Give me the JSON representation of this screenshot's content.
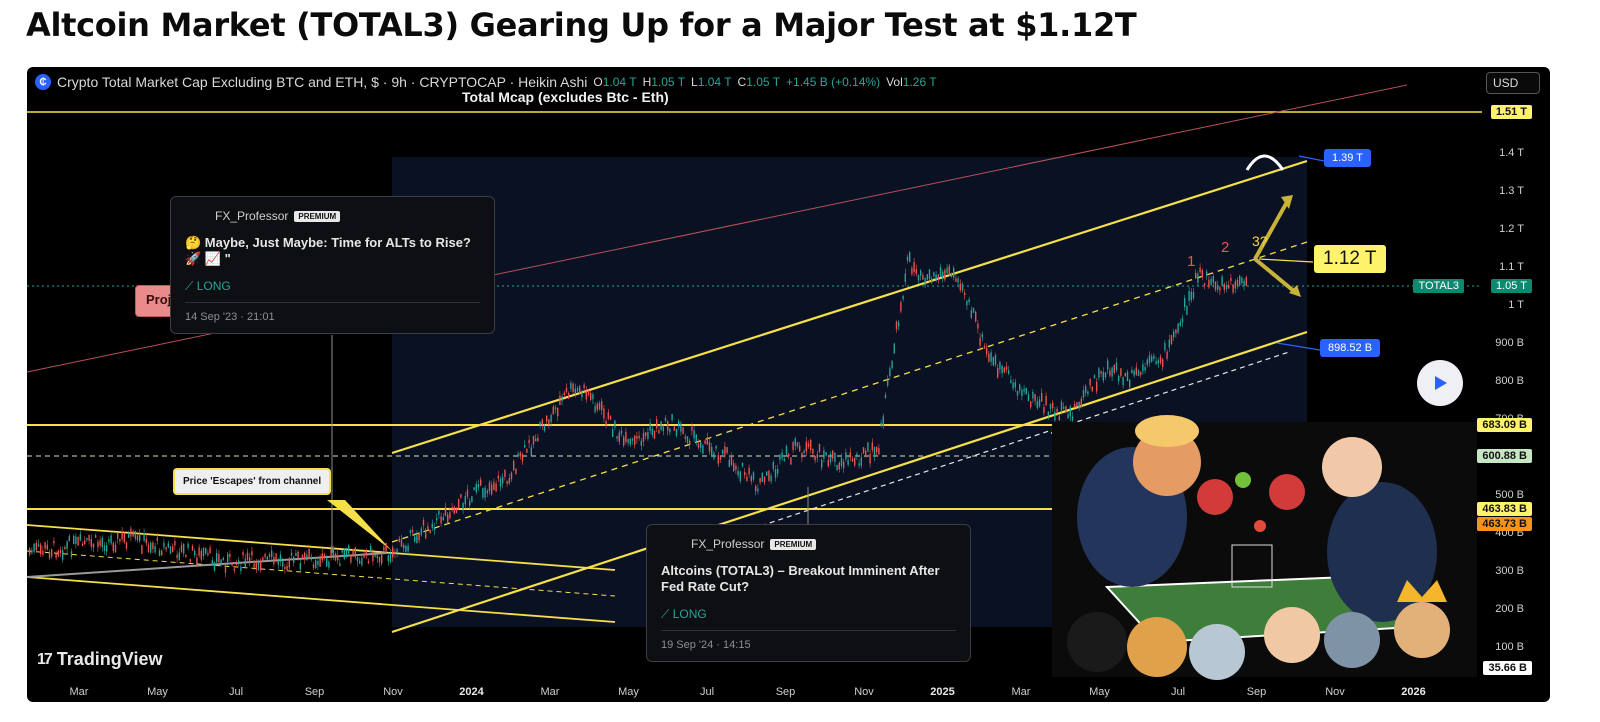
{
  "page": {
    "title": "Altcoin Market (TOTAL3) Gearing Up for a Major Test at $1.12T"
  },
  "legend": {
    "symbol": "Crypto Total Market Cap Excluding BTC and ETH, $ · 9h · CRYPTOCAP · Heikin Ashi",
    "o_label": "O",
    "o_value": "1.04 T",
    "h_label": "H",
    "h_value": "1.05 T",
    "l_label": "L",
    "l_value": "1.04 T",
    "c_label": "C",
    "c_value": "1.05 T",
    "change": "+1.45 B (+0.14%)",
    "vol_label": "Vol",
    "vol_value": "1.26 T"
  },
  "currency_button": "USD",
  "overlay_title": "Total Mcap (excludes Btc - Eth)",
  "price_axis": [
    "1.4 T",
    "1.3 T",
    "1.2 T",
    "1.1 T",
    "1 T",
    "900 B",
    "800 B",
    "700 B",
    "500 B",
    "400 B",
    "300 B",
    "200 B",
    "100 B"
  ],
  "price_tags": {
    "top": "1.51 T",
    "current_symbol": "TOTAL3",
    "current_value": "1.05 T",
    "level_683": "683.09 B",
    "level_600": "600.88 B",
    "level_463a": "463.83 B",
    "level_463b": "463.73 B",
    "bottom": "35.66 B"
  },
  "colors": {
    "tag_yellow": "#fff36b",
    "tag_green": "#c7e6c3",
    "tag_orange": "#f7931a",
    "tag_teal": "#0b8a6f"
  },
  "time_axis": [
    "Mar",
    "May",
    "Jul",
    "Sep",
    "Nov",
    "2024",
    "Mar",
    "May",
    "Jul",
    "Sep",
    "Nov",
    "2025",
    "Mar",
    "May",
    "Jul",
    "Sep",
    "Nov",
    "2026"
  ],
  "annotations": {
    "target": "1.12 T",
    "upper_target": "1.39 T",
    "lower_support": "898.52 B",
    "wave_1": "1",
    "wave_2": "2",
    "wave_3": "3?",
    "escape_callout": "Price 'Escapes' from channel",
    "pink_label": "Proj"
  },
  "idea_cards": [
    {
      "author": "FX_Professor",
      "badge": "PREMIUM",
      "title": "🤔 Maybe, Just Maybe: Time for ALTs to Rise? 🚀 📈 \"",
      "side": "LONG",
      "date": "14 Sep '23 · 21:01"
    },
    {
      "author": "FX_Professor",
      "badge": "PREMIUM",
      "title": "Altcoins (TOTAL3) – Breakout Imminent After Fed Rate Cut?",
      "side": "LONG",
      "date": "19 Sep '24 · 14:15"
    }
  ],
  "branding": {
    "tradingview": "TradingView"
  }
}
